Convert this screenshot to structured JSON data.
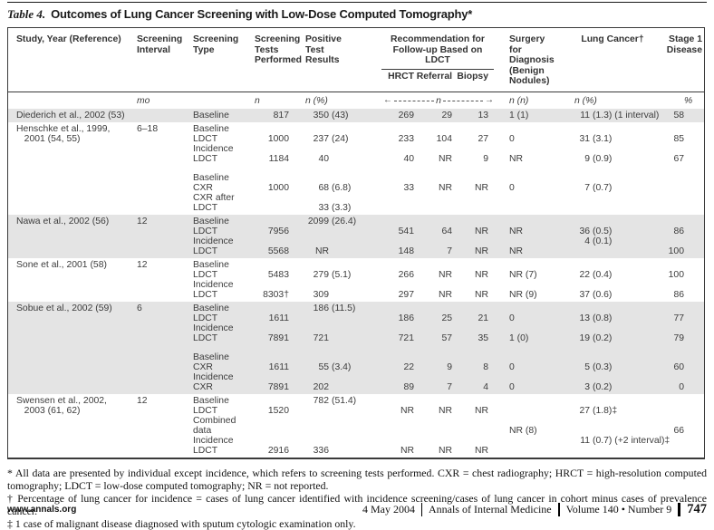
{
  "title": {
    "label": "Table 4.",
    "text": "Outcomes of Lung Cancer Screening with Low-Dose Computed Tomography*"
  },
  "table": {
    "columns": {
      "study": "Study, Year (Reference)",
      "interval": "Screening Interval",
      "type": "Screening Type",
      "tests": "Screening Tests Performed",
      "positive": "Positive Test Results",
      "surgery": "Surgery for Diagnosis (Benign Nodules)",
      "cancer": "Lung Cancer†",
      "stage": "Stage 1 Disease"
    },
    "group_header": "Recommendation for Follow-up Based on LDCT",
    "sub_columns": [
      "HRCT",
      "Referral",
      "Biopsy"
    ],
    "units": {
      "interval": "mo",
      "tests": "n",
      "positive": "n (%)",
      "followup": "n",
      "surgery": "n (n)",
      "cancer": "n (%)",
      "stage": "%"
    },
    "rows": [
      {
        "shaded": true,
        "lines": [
          [
            "Diederich et al., 2002 (53)",
            "",
            "Baseline",
            "817",
            "350 (43)",
            "269",
            "29",
            "13",
            "1 (1)",
            "11 (1.3) (1 interval)",
            "58"
          ]
        ]
      },
      {
        "shaded": false,
        "lines": [
          [
            "Henschke et al., 1999,",
            "6–18",
            "Baseline",
            "",
            "",
            "",
            "",
            "",
            "",
            "",
            ""
          ],
          [
            "   2001 (54, 55)",
            "",
            "LDCT",
            "1000",
            "237 (24)",
            "233",
            "104",
            "27",
            "0",
            "31 (3.1)",
            "85"
          ],
          [
            "",
            "",
            "Incidence",
            "",
            "",
            "",
            "",
            "",
            "",
            "",
            ""
          ],
          [
            "",
            "",
            "LDCT",
            "1184",
            "40",
            "40",
            "NR",
            "9",
            "NR",
            "9 (0.9)",
            "67"
          ],
          [],
          [
            "",
            "",
            "Baseline",
            "",
            "",
            "",
            "",
            "",
            "",
            "",
            ""
          ],
          [
            "",
            "",
            "CXR",
            "1000",
            "68 (6.8)",
            "33",
            "NR",
            "NR",
            "0",
            "7 (0.7)",
            ""
          ],
          [
            "",
            "",
            "CXR after",
            "",
            "",
            "",
            "",
            "",
            "",
            "",
            ""
          ],
          [
            "",
            "",
            "LDCT",
            "",
            "33 (3.3)",
            "",
            "",
            "",
            "",
            "",
            ""
          ]
        ]
      },
      {
        "shaded": true,
        "lines": [
          [
            "Nawa et al., 2002 (56)",
            "12",
            "Baseline",
            "",
            "2099 (26.4)",
            "",
            "",
            "",
            "",
            "",
            ""
          ],
          [
            "",
            "",
            "LDCT",
            "7956",
            "",
            "541",
            "64",
            "NR",
            "NR",
            "36 (0.5)",
            "86"
          ],
          [
            "",
            "",
            "Incidence",
            "",
            "",
            "",
            "",
            "",
            "",
            "4 (0.1)",
            ""
          ],
          [
            "",
            "",
            "LDCT",
            "5568",
            "NR",
            "148",
            "7",
            "NR",
            "NR",
            "",
            "100"
          ]
        ]
      },
      {
        "shaded": false,
        "lines": [
          [
            "Sone et al., 2001 (58)",
            "12",
            "Baseline",
            "",
            "",
            "",
            "",
            "",
            "",
            "",
            ""
          ],
          [
            "",
            "",
            "LDCT",
            "5483",
            "279 (5.1)",
            "266",
            "NR",
            "NR",
            "NR (7)",
            "22 (0.4)",
            "100"
          ],
          [
            "",
            "",
            "Incidence",
            "",
            "",
            "",
            "",
            "",
            "",
            "",
            ""
          ],
          [
            "",
            "",
            "LDCT",
            "8303†",
            "309",
            "297",
            "NR",
            "NR",
            "NR (9)",
            "37 (0.6)",
            "86"
          ]
        ]
      },
      {
        "shaded": true,
        "lines": [
          [
            "Sobue et al., 2002 (59)",
            "6",
            "Baseline",
            "",
            "186 (11.5)",
            "",
            "",
            "",
            "",
            "",
            ""
          ],
          [
            "",
            "",
            "LDCT",
            "1611",
            "",
            "186",
            "25",
            "21",
            "0",
            "13 (0.8)",
            "77"
          ],
          [
            "",
            "",
            "Incidence",
            "",
            "",
            "",
            "",
            "",
            "",
            "",
            ""
          ],
          [
            "",
            "",
            "LDCT",
            "7891",
            "721",
            "721",
            "57",
            "35",
            "1 (0)",
            "19 (0.2)",
            "79"
          ],
          [],
          [
            "",
            "",
            "Baseline",
            "",
            "",
            "",
            "",
            "",
            "",
            "",
            ""
          ],
          [
            "",
            "",
            "CXR",
            "1611",
            "55 (3.4)",
            "22",
            "9",
            "8",
            "0",
            "5 (0.3)",
            "60"
          ],
          [
            "",
            "",
            "Incidence",
            "",
            "",
            "",
            "",
            "",
            "",
            "",
            ""
          ],
          [
            "",
            "",
            "CXR",
            "7891",
            "202",
            "89",
            "7",
            "4",
            "0",
            "3 (0.2)",
            "0"
          ]
        ]
      },
      {
        "shaded": false,
        "lines": [
          [
            "Swensen et al., 2002,",
            "12",
            "Baseline",
            "",
            "782 (51.4)",
            "",
            "",
            "",
            "",
            "",
            ""
          ],
          [
            "   2003 (61, 62)",
            "",
            "LDCT",
            "1520",
            "",
            "NR",
            "NR",
            "NR",
            "",
            "27 (1.8)‡",
            ""
          ],
          [
            "",
            "",
            "Combined",
            "",
            "",
            "",
            "",
            "",
            "",
            "",
            ""
          ],
          [
            "",
            "",
            "data",
            "",
            "",
            "",
            "",
            "",
            "NR (8)",
            "",
            "66"
          ],
          [
            "",
            "",
            "Incidence",
            "",
            "",
            "",
            "",
            "",
            "",
            "11 (0.7) (+2 interval)‡",
            ""
          ],
          [
            "",
            "",
            "LDCT",
            "2916",
            "336",
            "NR",
            "NR",
            "NR",
            "",
            "",
            ""
          ]
        ]
      }
    ]
  },
  "footnotes": [
    "* All data are presented by individual except incidence, which refers to screening tests performed. CXR = chest radiography; HRCT = high-resolution computed tomography; LDCT = low-dose computed tomography; NR = not reported.",
    "† Percentage of lung cancer for incidence = cases of lung cancer identified with incidence screening/cases of lung cancer in cohort minus cases of prevalence cancer.",
    "‡ 1 case of malignant disease diagnosed with sputum cytologic examination only."
  ],
  "footer": {
    "site": "www.annals.org",
    "date": "4 May 2004",
    "journal": "Annals of Internal Medicine",
    "volume": "Volume 140 • Number 9",
    "page": "747"
  }
}
